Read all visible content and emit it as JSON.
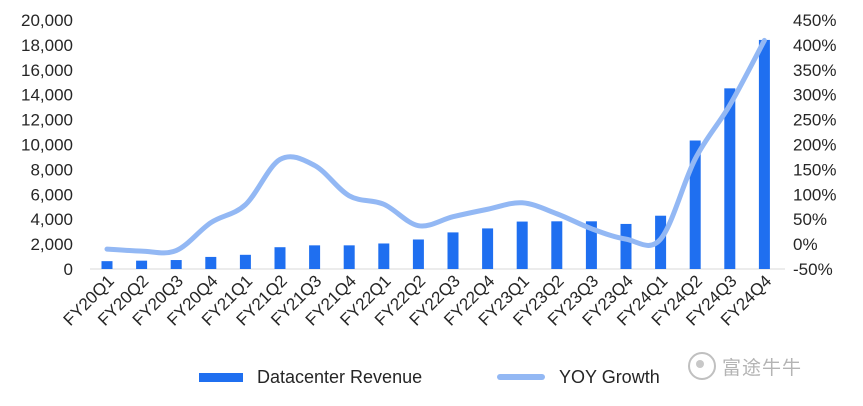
{
  "chart_data": {
    "type": "bar",
    "categories": [
      "FY20Q1",
      "FY20Q2",
      "FY20Q3",
      "FY20Q4",
      "FY21Q1",
      "FY21Q2",
      "FY21Q3",
      "FY21Q4",
      "FY22Q1",
      "FY22Q2",
      "FY22Q3",
      "FY22Q4",
      "FY23Q1",
      "FY23Q2",
      "FY23Q3",
      "FY23Q4",
      "FY24Q1",
      "FY24Q2",
      "FY24Q3",
      "FY24Q4"
    ],
    "series": [
      {
        "name": "Datacenter Revenue",
        "type": "bar",
        "axis": "left",
        "color": "#1f6ff0",
        "values": [
          630,
          670,
          720,
          970,
          1140,
          1750,
          1900,
          1900,
          2050,
          2370,
          2940,
          3260,
          3810,
          3830,
          3830,
          3620,
          4280,
          10320,
          14510,
          18400
        ]
      },
      {
        "name": "YOY Growth",
        "type": "line",
        "axis": "right",
        "color": "#93b8f4",
        "values": [
          -10,
          -14,
          -13,
          43,
          79,
          170,
          158,
          97,
          80,
          37,
          55,
          70,
          83,
          61,
          31,
          10,
          10,
          171,
          279,
          409
        ]
      }
    ],
    "y_left": {
      "min": 0,
      "max": 20000,
      "step": 2000,
      "tick_labels": [
        "0",
        "2,000",
        "4,000",
        "6,000",
        "8,000",
        "10,000",
        "12,000",
        "14,000",
        "16,000",
        "18,000",
        "20,000"
      ]
    },
    "y_right": {
      "min": -50,
      "max": 450,
      "step": 50,
      "tick_labels": [
        "-50%",
        "0%",
        "50%",
        "100%",
        "150%",
        "200%",
        "250%",
        "300%",
        "350%",
        "400%",
        "450%"
      ]
    },
    "grid": false,
    "legend_position": "bottom"
  },
  "legend": {
    "bar_label": "Datacenter Revenue",
    "line_label": "YOY Growth"
  },
  "watermark": {
    "text": "富途牛牛"
  }
}
